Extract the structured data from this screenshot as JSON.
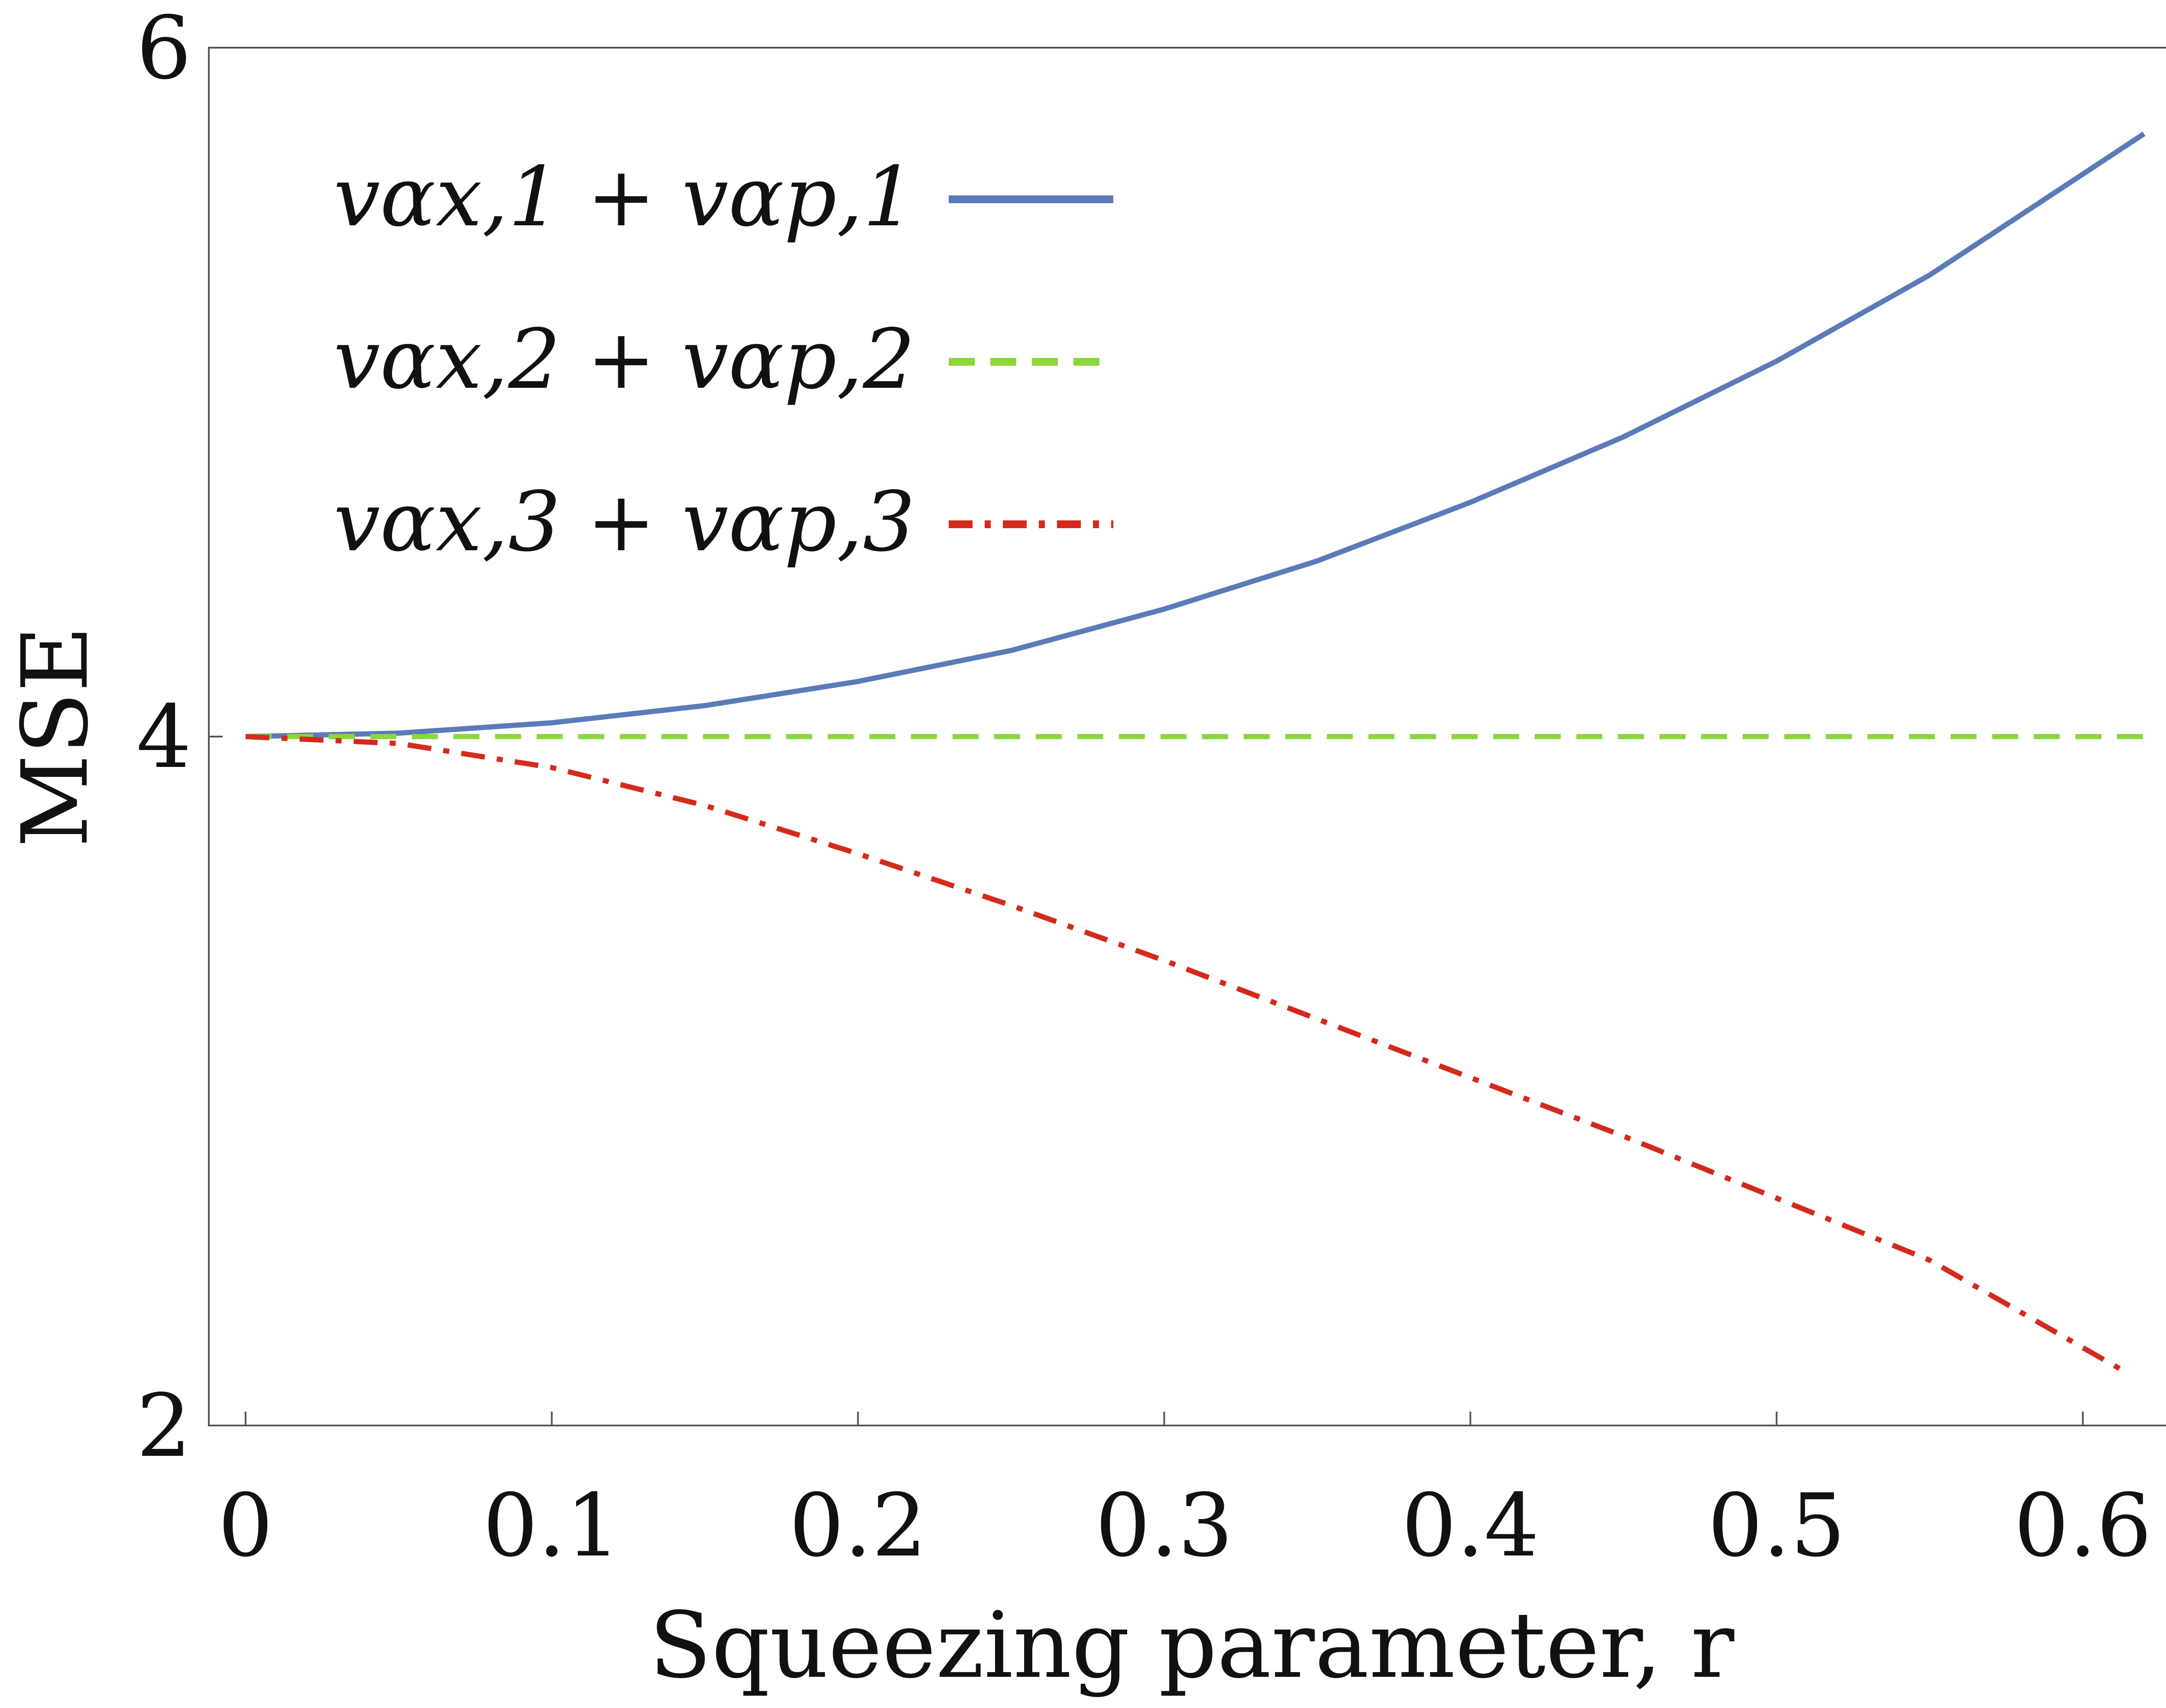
{
  "chart_data": {
    "type": "line",
    "title": "",
    "xlabel": "Squeezing parameter, r",
    "ylabel": "MSE",
    "xlim": [
      -0.012,
      0.63
    ],
    "ylim": [
      2,
      6
    ],
    "xticks": [
      0,
      0.1,
      0.2,
      0.3,
      0.4,
      0.5,
      0.6
    ],
    "xtick_labels": [
      "0",
      "0.1",
      "0.2",
      "0.3",
      "0.4",
      "0.5",
      "0.6"
    ],
    "yticks": [
      2,
      4,
      6
    ],
    "ytick_labels": [
      "2",
      "4",
      "6"
    ],
    "grid": false,
    "legend_position": "top-left",
    "series": [
      {
        "name": "v_{α_x,1} + v_{α_p,1}",
        "legend_label": "vαx,1 + vαp,1",
        "style": "solid",
        "color": "#5b7bb8",
        "x": [
          0,
          0.05,
          0.1,
          0.15,
          0.2,
          0.25,
          0.3,
          0.35,
          0.4,
          0.45,
          0.5,
          0.55,
          0.62
        ],
        "y": [
          4.0,
          4.01,
          4.04,
          4.09,
          4.16,
          4.25,
          4.37,
          4.51,
          4.68,
          4.87,
          5.09,
          5.34,
          5.75
        ]
      },
      {
        "name": "v_{α_x,2} + v_{α_p,2}",
        "legend_label": "vαx,2 + vαp,2",
        "style": "dashed",
        "color": "#8cd63c",
        "x": [
          0,
          0.62
        ],
        "y": [
          4.0,
          4.0
        ]
      },
      {
        "name": "v_{α_x,3} + v_{α_p,3}",
        "legend_label": "vαx,3 + vαp,3",
        "style": "dashdot",
        "color": "#d42a1c",
        "x": [
          0,
          0.05,
          0.1,
          0.15,
          0.2,
          0.25,
          0.3,
          0.35,
          0.4,
          0.45,
          0.5,
          0.55,
          0.615
        ],
        "y": [
          4.0,
          3.98,
          3.91,
          3.8,
          3.66,
          3.51,
          3.35,
          3.18,
          3.01,
          2.84,
          2.66,
          2.48,
          2.15
        ]
      }
    ]
  }
}
